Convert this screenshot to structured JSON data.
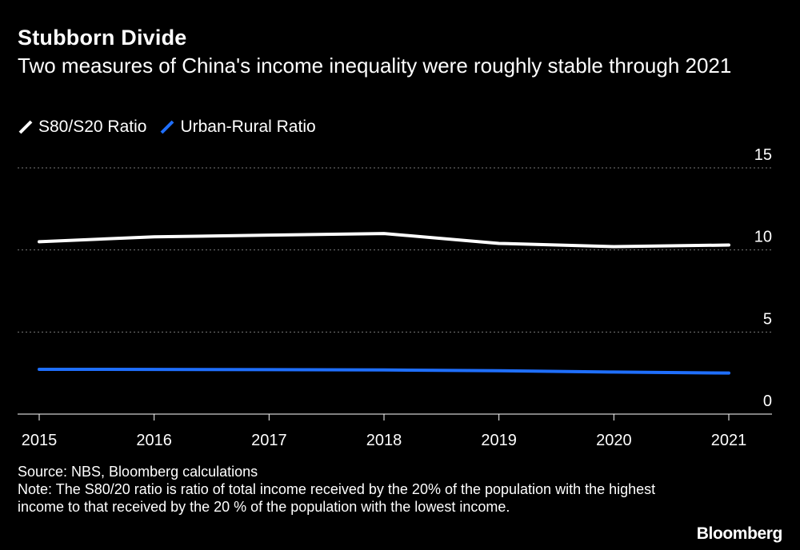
{
  "title": "Stubborn Divide",
  "subtitle": "Two measures of China's income inequality were roughly stable through 2021",
  "source": "Source: NBS, Bloomberg calculations",
  "note": "Note: The S80/20 ratio is ratio of total income received by the 20% of the population with the highest income to that received by the 20 % of the population with the lowest income.",
  "brand": "Bloomberg",
  "colors": {
    "background": "#000000",
    "s80": "#ffffff",
    "urban_rural": "#1f6fff",
    "grid": "#7a7a7a"
  },
  "legend": [
    {
      "label": "S80/S20 Ratio",
      "color": "#ffffff"
    },
    {
      "label": "Urban-Rural Ratio",
      "color": "#1f6fff"
    }
  ],
  "chart_data": {
    "type": "line",
    "x": [
      "2015",
      "2016",
      "2017",
      "2018",
      "2019",
      "2020",
      "2021"
    ],
    "series": [
      {
        "name": "S80/S20 Ratio",
        "values": [
          10.5,
          10.8,
          10.9,
          11.0,
          10.4,
          10.2,
          10.3
        ]
      },
      {
        "name": "Urban-Rural Ratio",
        "values": [
          2.73,
          2.72,
          2.71,
          2.69,
          2.64,
          2.56,
          2.5
        ]
      }
    ],
    "ylim": [
      0,
      15
    ],
    "yticks": [
      "15",
      "10",
      "5",
      "0"
    ],
    "ytick_values": [
      15,
      10,
      5,
      0
    ],
    "grid": true,
    "legend_position": "top-left",
    "xlabel": "",
    "ylabel": ""
  }
}
